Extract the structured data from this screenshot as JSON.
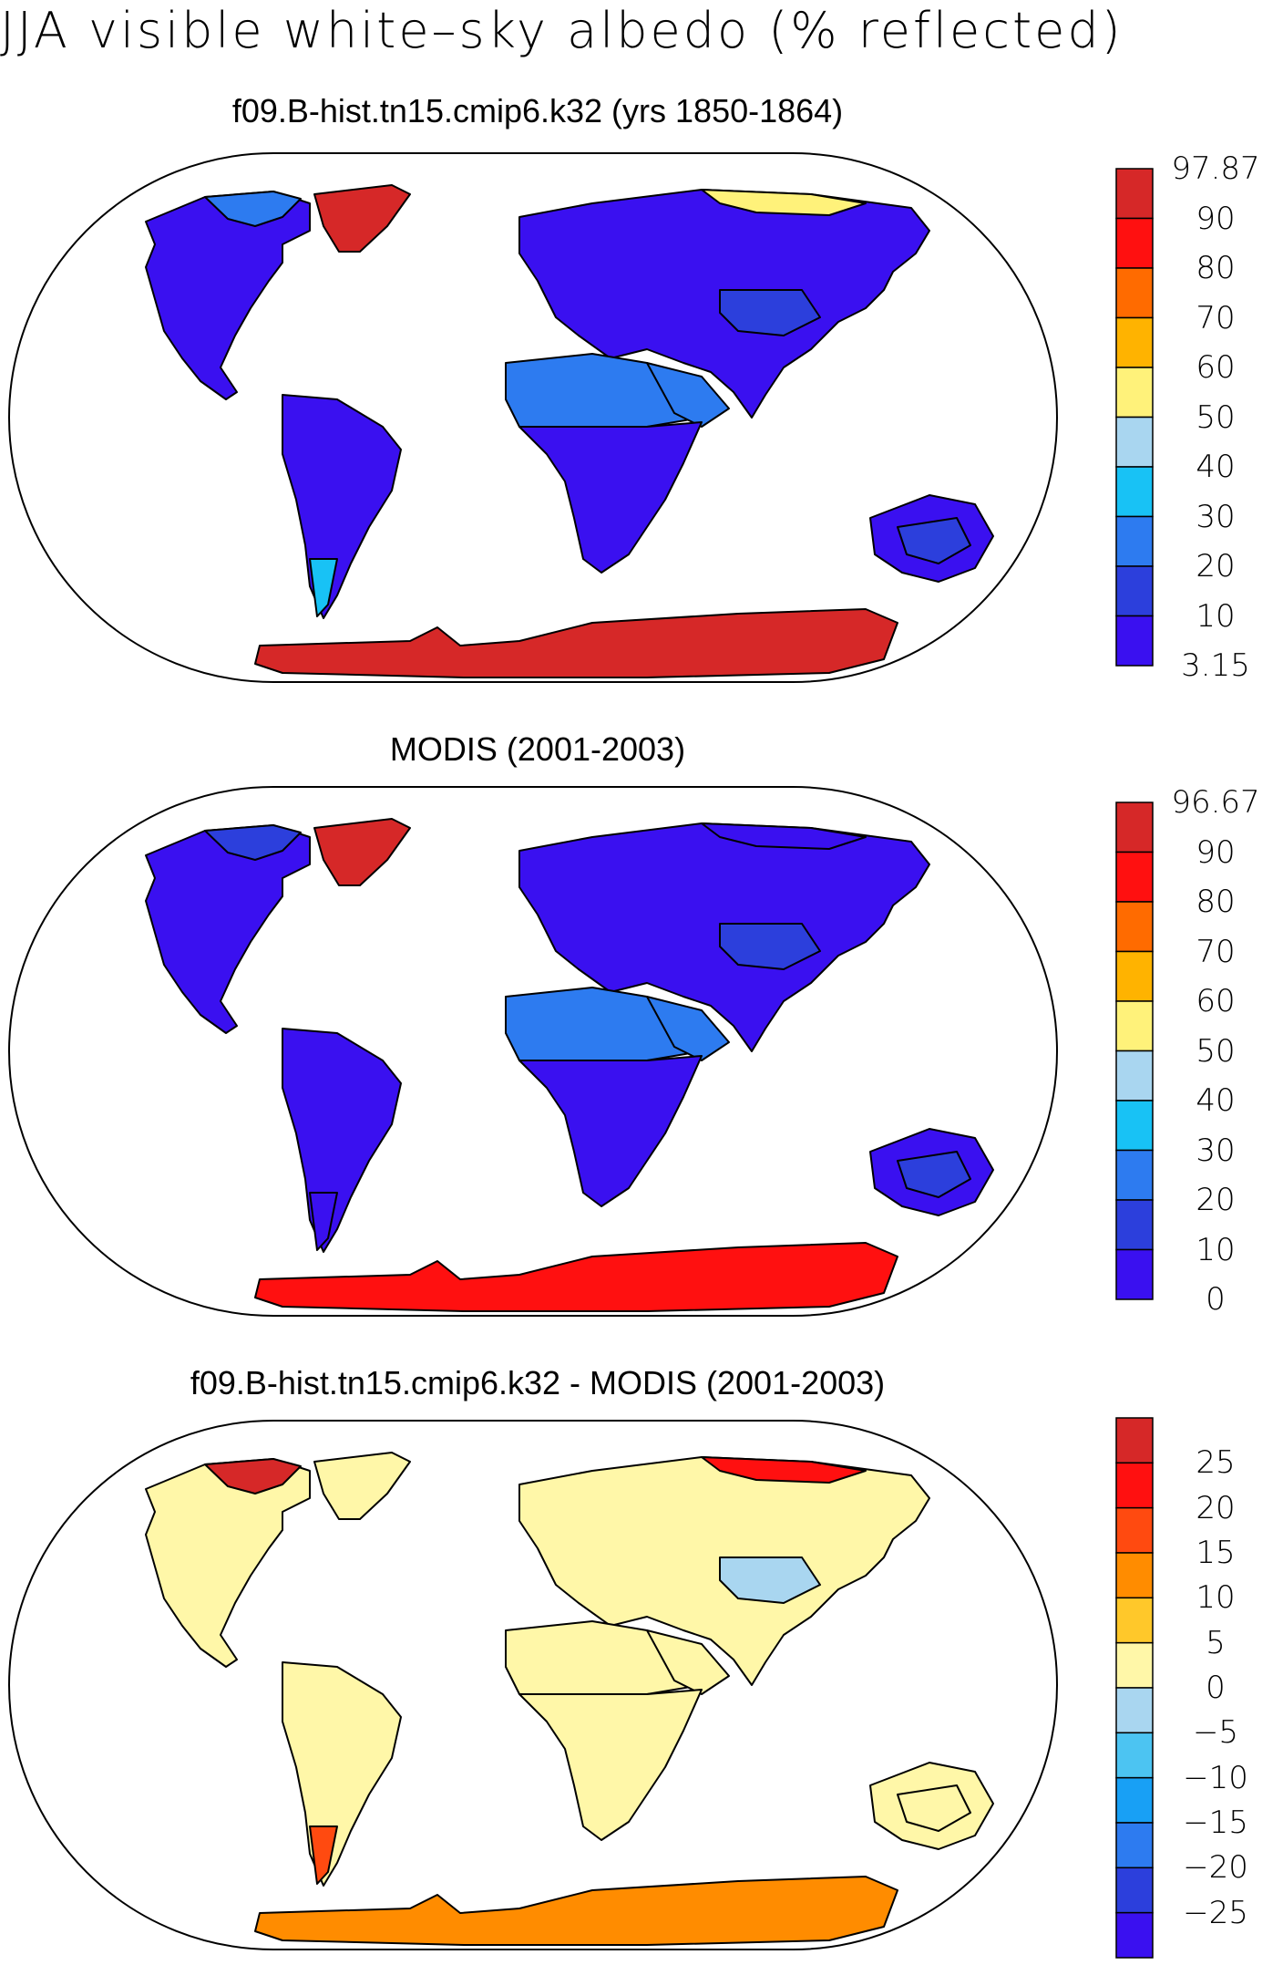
{
  "title": "JJA visible white–sky albedo (% reflected)",
  "colors": {
    "land_outline": "#000000",
    "ocean": "#ffffff",
    "frame": "#000000"
  },
  "panels": [
    {
      "id": "model",
      "title": "f09.B-hist.tn15.cmip6.k32 (yrs 1850-1864)",
      "colorbar": {
        "labels": [
          "97.87",
          "90",
          "80",
          "70",
          "60",
          "50",
          "40",
          "30",
          "20",
          "10",
          "3.15"
        ],
        "colors": [
          "#d62828",
          "#ff1010",
          "#ff6b00",
          "#ffb300",
          "#fff27a",
          "#a9d6f0",
          "#18c2f5",
          "#2d7bf0",
          "#2c3fdc",
          "#3a10f0"
        ]
      },
      "regions": {
        "north_america": "#3a10f0",
        "greenland": "#d62828",
        "canadian_arctic": "#2d7bf0",
        "south_america": "#3a10f0",
        "europe_asia": "#3a10f0",
        "siberia_coast": "#fff27a",
        "sahara": "#2d7bf0",
        "africa_south": "#3a10f0",
        "arabia": "#2d7bf0",
        "australia": "#3a10f0",
        "australia_center": "#2c3fdc",
        "antarctica": "#d62828",
        "patagonia": "#18c2f5",
        "tibet": "#2c3fdc"
      }
    },
    {
      "id": "obs",
      "title": "MODIS (2001-2003)",
      "colorbar": {
        "labels": [
          "96.67",
          "90",
          "80",
          "70",
          "60",
          "50",
          "40",
          "30",
          "20",
          "10",
          "0"
        ],
        "colors": [
          "#d62828",
          "#ff1010",
          "#ff6b00",
          "#ffb300",
          "#fff27a",
          "#a9d6f0",
          "#18c2f5",
          "#2d7bf0",
          "#2c3fdc",
          "#3a10f0"
        ]
      },
      "regions": {
        "north_america": "#3a10f0",
        "greenland": "#d62828",
        "canadian_arctic": "#2c3fdc",
        "south_america": "#3a10f0",
        "europe_asia": "#3a10f0",
        "siberia_coast": "#3a10f0",
        "sahara": "#2d7bf0",
        "africa_south": "#3a10f0",
        "arabia": "#2d7bf0",
        "australia": "#3a10f0",
        "australia_center": "#2c3fdc",
        "antarctica": "#ff1010",
        "patagonia": "#3a10f0",
        "tibet": "#2c3fdc"
      }
    },
    {
      "id": "diff",
      "title": "f09.B-hist.tn15.cmip6.k32 - MODIS (2001-2003)",
      "colorbar": {
        "labels": [
          "25",
          "20",
          "15",
          "10",
          "5",
          "0",
          "−5",
          "−10",
          "−15",
          "−20",
          "−25"
        ],
        "colors": [
          "#d62828",
          "#ff1010",
          "#ff4a10",
          "#ff8c00",
          "#ffc82a",
          "#fff7a8",
          "#a9d6f0",
          "#4cc4f2",
          "#18a0f5",
          "#2d7bf0",
          "#2c3fdc",
          "#3a10f0"
        ]
      },
      "regions": {
        "north_america": "#fff7a8",
        "greenland": "#fff7a8",
        "canadian_arctic": "#d62828",
        "south_america": "#fff7a8",
        "europe_asia": "#fff7a8",
        "siberia_coast": "#ff1010",
        "sahara": "#fff7a8",
        "africa_south": "#fff7a8",
        "arabia": "#fff7a8",
        "australia": "#fff7a8",
        "australia_center": "#fff7a8",
        "antarctica": "#ff8c00",
        "patagonia": "#ff4a10",
        "tibet": "#a9d6f0"
      }
    }
  ]
}
